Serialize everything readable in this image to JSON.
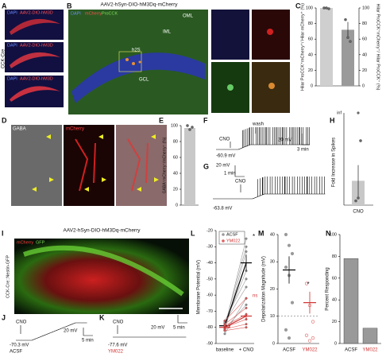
{
  "A": {
    "letter": "A",
    "side_label": "CCK-Cre",
    "images": [
      {
        "stain": "DAPI",
        "virus": "AAV2-DIO-hM3D"
      },
      {
        "stain": "DAPI",
        "virus": "AAV2-DIO-hM3D"
      },
      {
        "stain": "DAPI",
        "virus": "AAV2-DIO-hM3D"
      }
    ]
  },
  "B": {
    "letter": "B",
    "title": "AAV2-hSyn-DIO-hM3Dq-mCherry",
    "stains": [
      "DAPI",
      "mCherry",
      "ProCCK"
    ],
    "regions": [
      "OML",
      "IML",
      "h2S",
      "GCL"
    ]
  },
  "C": {
    "letter": "C",
    "ylabel": "Hilar ProCCK⁺mCherry⁺/ Hilar mCherry⁺ (%)",
    "y2label": "Hilar ProCCK⁺mCherry⁺/ Hilar ProCCK⁺ (%)",
    "ylim": [
      0,
      100
    ],
    "yticks": [
      0,
      20,
      40,
      60,
      80,
      100
    ],
    "y2lim": [
      0,
      100
    ],
    "y2ticks": [
      0,
      20,
      40,
      60,
      80,
      100
    ],
    "bars": [
      {
        "value": 100,
        "color": "#cfcfcf",
        "points": [
          100,
          100,
          99
        ]
      },
      {
        "value": 72,
        "color": "#9a9a9a",
        "error": 10,
        "points": [
          85,
          62,
          57
        ]
      }
    ]
  },
  "D": {
    "letter": "D",
    "channels": [
      "GABA",
      "mCherry"
    ]
  },
  "E": {
    "letter": "E",
    "ylabel": "GABA⁺mCherry⁺/mCherry⁺ (%)",
    "ylim": [
      0,
      100
    ],
    "yticks": [
      0,
      20,
      40,
      60,
      80,
      100
    ],
    "value": 97,
    "color": "#c8c8c8",
    "points": [
      100,
      95,
      98
    ]
  },
  "F": {
    "letter": "F",
    "drug": "CNO",
    "wash": "wash",
    "vm": "-60.9 mV",
    "scale_v": "20 mV",
    "scale_t": "3 min"
  },
  "G": {
    "letter": "G",
    "drug": "CNO",
    "vm": "-63.8 mV",
    "scale_v": "20 mV",
    "scale_t": "1 min"
  },
  "H": {
    "letter": "H",
    "ylabel": "Fold Increase in Spikes",
    "top_label": "inf",
    "category": "CNO",
    "ylim": [
      0,
      60
    ],
    "value": 17,
    "error": 11,
    "color": "#c8c8c8",
    "points": [
      3,
      5,
      45
    ]
  },
  "I": {
    "letter": "I",
    "title": "AAV2-hSyn-DIO-hM3Dq-mCherry",
    "stains": [
      "mCherry",
      "GFP"
    ],
    "side_label": "CCK-Cre::Nestin-GFP"
  },
  "J": {
    "letter": "J",
    "drug": "CNO",
    "vm": "-70.3 mV",
    "condition": "ACSF",
    "scale_v": "20 mV",
    "scale_t": "5 min"
  },
  "K": {
    "letter": "K",
    "drug": "CNO",
    "vm": "-77.6 mV",
    "condition": "YM022",
    "scale_v": "20 mV",
    "scale_t": "5 min"
  },
  "L": {
    "letter": "L",
    "ylabel": "Membrane Potential (mV)",
    "categories": [
      "baseline",
      "+ CNO"
    ],
    "ylim": [
      -90,
      -20
    ],
    "yticks": [
      -20,
      -30,
      -40,
      -50,
      -60,
      -70,
      -80,
      -90
    ],
    "series": [
      {
        "name": "ACSF",
        "color": "#9a9a9a",
        "cells": [
          [
            -80,
            -25
          ],
          [
            -82,
            -33
          ],
          [
            -78,
            -45
          ],
          [
            -77,
            -55
          ],
          [
            -79,
            -30
          ],
          [
            -81,
            -66
          ],
          [
            -76,
            -50
          ],
          [
            -84,
            -62
          ]
        ],
        "mean": [
          -79,
          -40
        ],
        "sem": [
          1,
          5
        ]
      },
      {
        "name": "YM022",
        "color": "#e06060",
        "cells": [
          [
            -80,
            -75
          ],
          [
            -78,
            -68
          ],
          [
            -82,
            -80
          ],
          [
            -76,
            -62
          ],
          [
            -81,
            -78
          ],
          [
            -79,
            -72
          ]
        ],
        "mean": [
          -80,
          -73
        ],
        "sem": [
          1,
          2
        ]
      }
    ],
    "annotations": [
      "*",
      "ns"
    ]
  },
  "M": {
    "letter": "M",
    "ylabel": "Depolarization Magnitude (mV)",
    "categories": [
      "ACSF",
      "YM022"
    ],
    "ylim": [
      0,
      40
    ],
    "yticks": [
      0,
      10,
      20,
      30,
      40
    ],
    "threshold": 10,
    "series": [
      {
        "color": "#9a9a9a",
        "points": [
          40,
          36,
          33,
          28,
          25,
          15,
          5,
          2
        ],
        "mean": 27,
        "sem": 5
      },
      {
        "color": "#e06060",
        "points": [
          22,
          14,
          8,
          3,
          1,
          2
        ],
        "mean": 15,
        "sem": 4
      }
    ],
    "annotation": "*"
  },
  "N": {
    "letter": "N",
    "ylabel": "Percent Responding",
    "categories": [
      "ACSF",
      "YM022"
    ],
    "values": [
      78,
      14
    ],
    "colors": [
      "#999999",
      "#999999"
    ],
    "ylim": [
      0,
      100
    ],
    "yticks": [
      0,
      20,
      40,
      60,
      80,
      100
    ]
  }
}
